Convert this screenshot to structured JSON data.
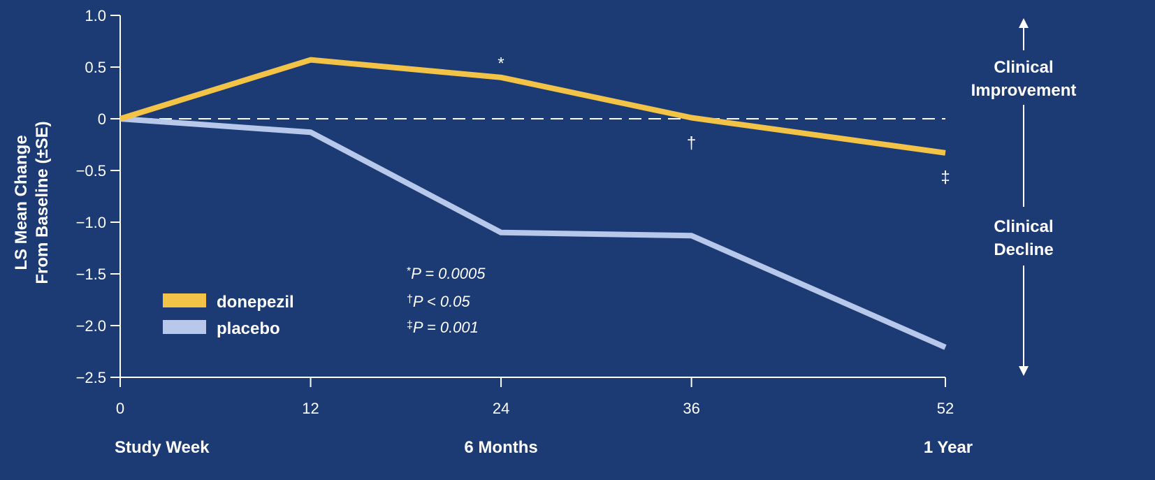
{
  "colors": {
    "background": "#1c3a73",
    "donepezil": "#f3c347",
    "placebo": "#b8c8ea",
    "axis": "#ffffff"
  },
  "chart_data": {
    "type": "line",
    "ylabel_line1": "LS Mean Change",
    "ylabel_line2": "From Baseline (±SE)",
    "xlim": [
      0,
      52
    ],
    "ylim": [
      -2.5,
      1.0
    ],
    "x_ticks": [
      0,
      12,
      24,
      36,
      52
    ],
    "y_ticks": [
      1.0,
      0.5,
      0,
      -0.5,
      -1.0,
      -1.5,
      -2.0,
      -2.5
    ],
    "y_tick_labels": [
      "1.0",
      "0.5",
      "0",
      "−0.5",
      "−1.0",
      "−1.5",
      "−2.0",
      "−2.5"
    ],
    "x_sub_labels": [
      {
        "x": 0,
        "text": "Study Week"
      },
      {
        "x": 24,
        "text": "6 Months"
      },
      {
        "x": 52,
        "text": "1 Year"
      }
    ],
    "reference_line": {
      "y": 0,
      "style": "dashed"
    },
    "series": [
      {
        "name": "donepezil",
        "x": [
          0,
          12,
          24,
          36,
          52
        ],
        "y": [
          0,
          0.57,
          0.4,
          0.01,
          -0.33
        ]
      },
      {
        "name": "placebo",
        "x": [
          0,
          12,
          24,
          36,
          52
        ],
        "y": [
          0,
          -0.13,
          -1.1,
          -1.13,
          -2.21
        ]
      }
    ],
    "significance_marks": [
      {
        "symbol": "*",
        "x": 24,
        "y": 0.55
      },
      {
        "symbol": "†",
        "x": 36,
        "y": -0.22
      },
      {
        "symbol": "‡",
        "x": 52,
        "y": -0.55
      }
    ],
    "footnotes": [
      {
        "symbol": "*",
        "text": "P = 0.0005"
      },
      {
        "symbol": "†",
        "text": "P < 0.05"
      },
      {
        "symbol": "‡",
        "text": "P = 0.001"
      }
    ],
    "legend": {
      "placement": "bottom-left"
    },
    "annotations": {
      "improvement": [
        "Clinical",
        "Improvement"
      ],
      "decline": [
        "Clinical",
        "Decline"
      ]
    }
  }
}
